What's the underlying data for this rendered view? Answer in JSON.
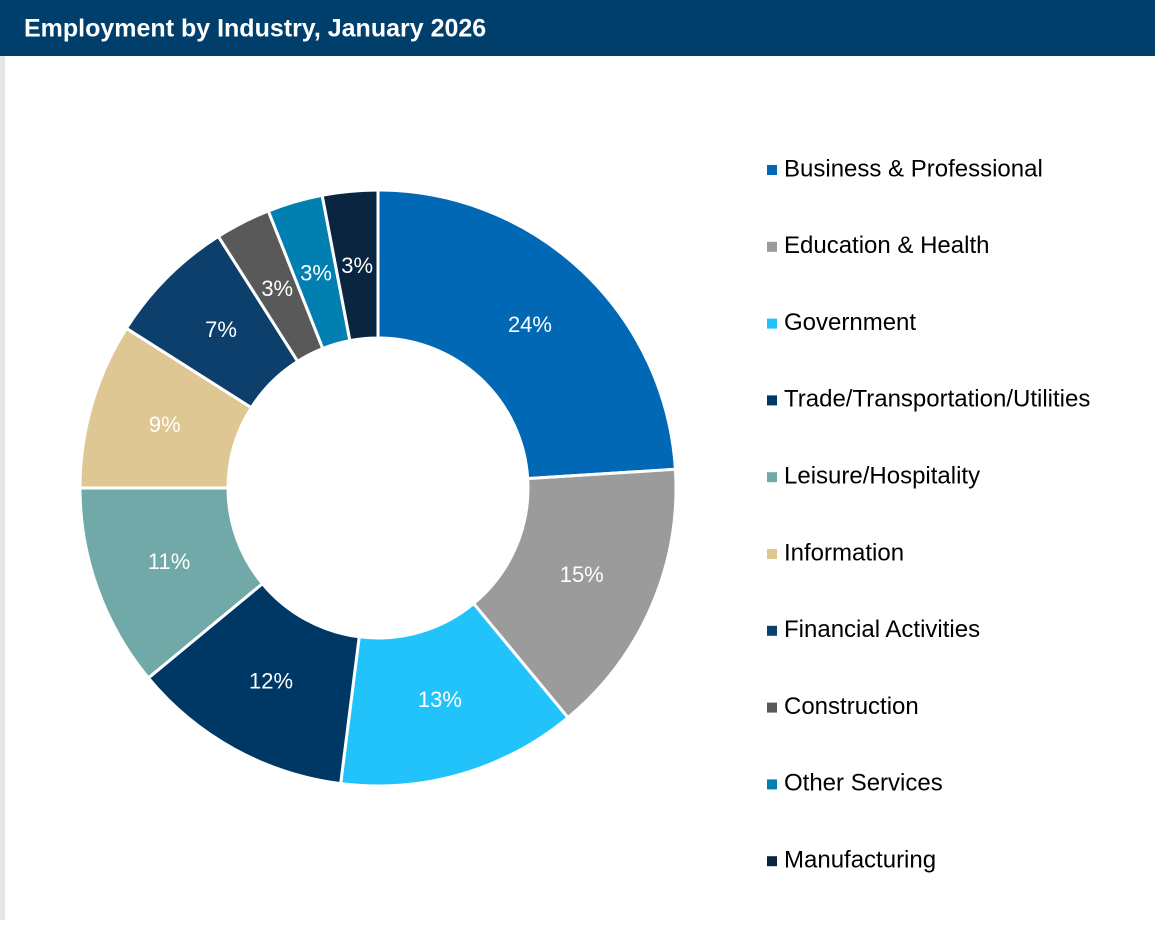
{
  "chart_data": {
    "type": "donut",
    "title": "Employment by Industry, January 2026",
    "categories": [
      "Business & Professional",
      "Education & Health",
      "Government",
      "Trade/Transportation/Utilities",
      "Leisure/Hospitality",
      "Information",
      "Financial Activities",
      "Construction",
      "Other Services",
      "Manufacturing"
    ],
    "values": [
      24,
      15,
      13,
      12,
      11,
      9,
      7,
      3,
      3,
      3
    ],
    "value_labels": [
      "24%",
      "15%",
      "13%",
      "12%",
      "11%",
      "9%",
      "7%",
      "3%",
      "3%",
      "3%"
    ],
    "colors": [
      "#0068b5",
      "#9b9b9b",
      "#22c3fb",
      "#003865",
      "#70a9a8",
      "#dfc794",
      "#0c3f6b",
      "#595959",
      "#007fb0",
      "#0a2540"
    ],
    "legend": "right"
  }
}
